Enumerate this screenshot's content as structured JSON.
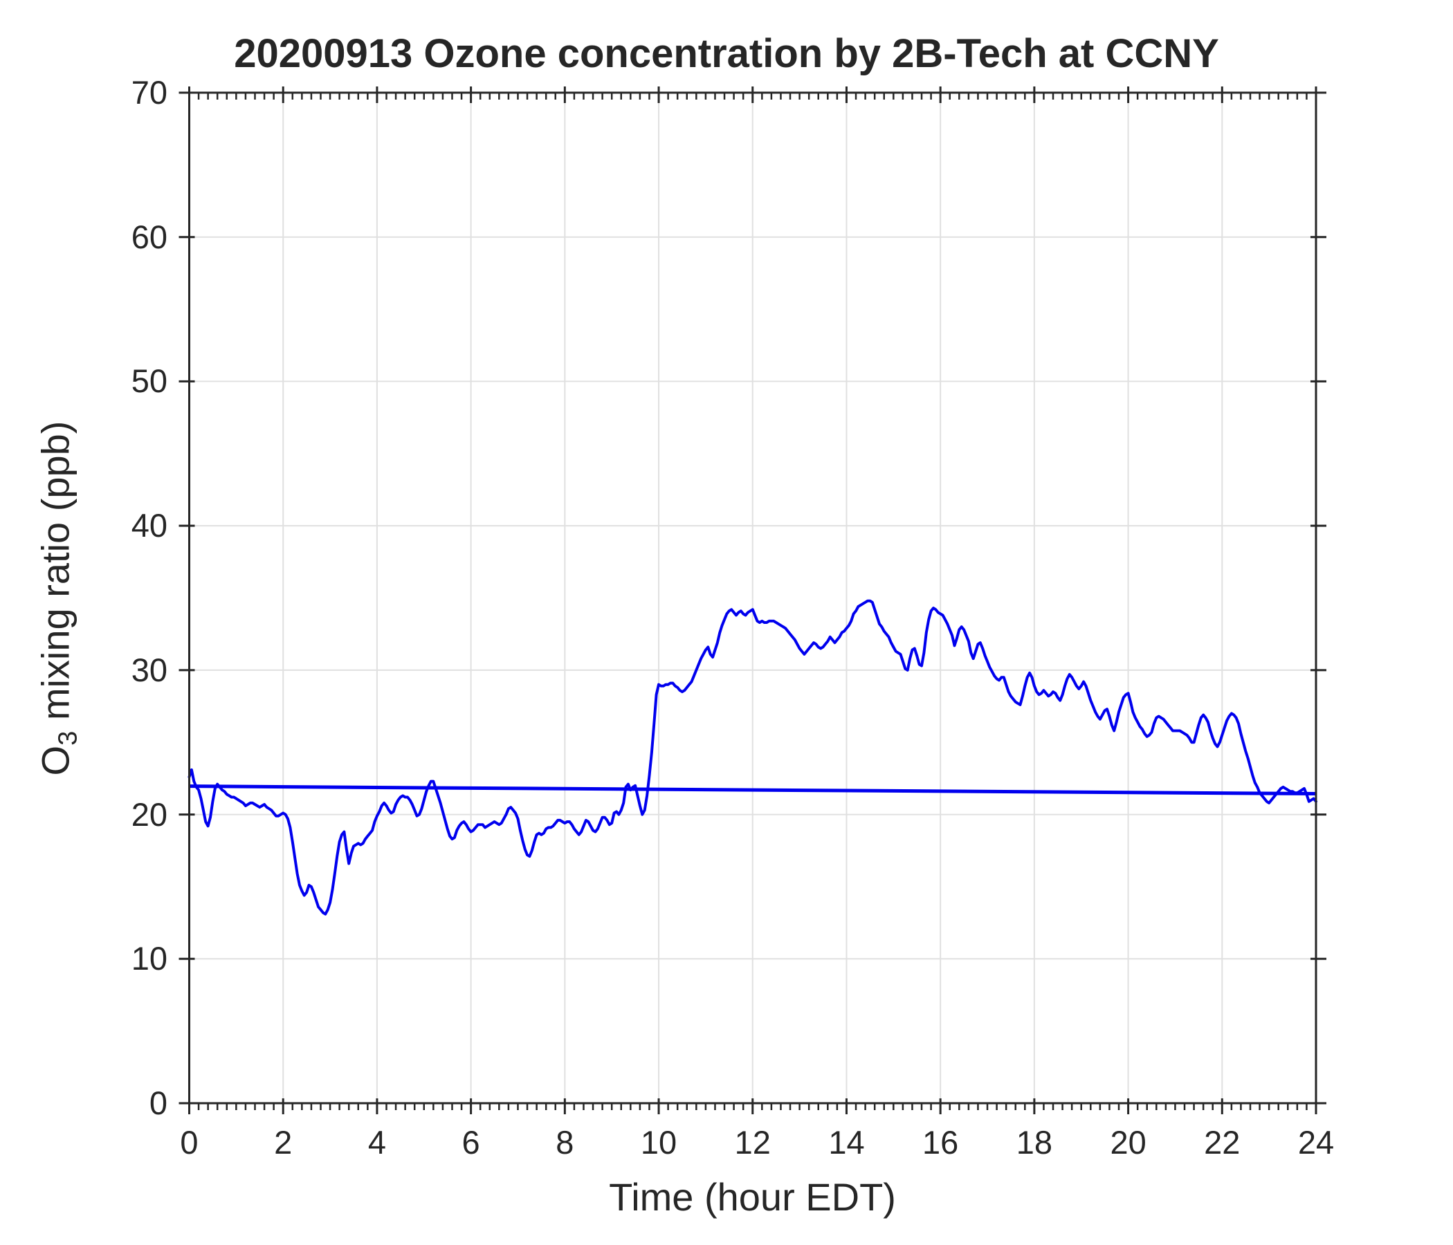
{
  "figure": {
    "title": "20200913 Ozone concentration by 2B-Tech at CCNY",
    "xlabel": "Time (hour EDT)",
    "ylabel_base": "O",
    "ylabel_sub": "3",
    "ylabel_rest": " mixing ratio (ppb)"
  },
  "chart_data": {
    "type": "line",
    "title": "20200913 Ozone concentration by 2B-Tech at CCNY",
    "xlabel": "Time (hour EDT)",
    "ylabel": "O3 mixing ratio (ppb)",
    "xlim": [
      0,
      24
    ],
    "ylim": [
      0,
      70
    ],
    "xticks": [
      0,
      2,
      4,
      6,
      8,
      10,
      12,
      14,
      16,
      18,
      20,
      22,
      24
    ],
    "yticks": [
      0,
      10,
      20,
      30,
      40,
      50,
      60,
      70
    ],
    "x_minor_tick_step": 0.2,
    "grid": true,
    "legend": "none",
    "colors": {
      "line": "#0000ee",
      "reference": "#0000ee",
      "grid": "#e0e0e0",
      "axis": "#262626",
      "text": "#262626",
      "background": "#ffffff"
    },
    "series": [
      {
        "name": "ozone-1min-trace",
        "t_start": 0,
        "t_step": 0.05,
        "values": [
          22.6,
          23.1,
          22.3,
          21.9,
          21.7,
          21.1,
          20.3,
          19.5,
          19.2,
          19.8,
          20.9,
          21.8,
          22.1,
          21.9,
          21.7,
          21.6,
          21.4,
          21.3,
          21.2,
          21.2,
          21.1,
          21.0,
          20.9,
          20.8,
          20.6,
          20.7,
          20.8,
          20.8,
          20.7,
          20.6,
          20.5,
          20.6,
          20.7,
          20.5,
          20.4,
          20.3,
          20.1,
          19.9,
          19.9,
          20.0,
          20.1,
          20.0,
          19.7,
          19.1,
          18.1,
          17.0,
          15.9,
          15.1,
          14.7,
          14.4,
          14.6,
          15.1,
          15.0,
          14.6,
          14.1,
          13.6,
          13.4,
          13.2,
          13.1,
          13.4,
          13.9,
          14.8,
          15.9,
          17.1,
          18.1,
          18.6,
          18.8,
          17.6,
          16.6,
          17.3,
          17.8,
          17.9,
          18.0,
          17.9,
          18.0,
          18.3,
          18.5,
          18.7,
          18.9,
          19.5,
          19.9,
          20.2,
          20.6,
          20.8,
          20.6,
          20.3,
          20.1,
          20.2,
          20.7,
          21.0,
          21.2,
          21.3,
          21.2,
          21.2,
          21.0,
          20.7,
          20.3,
          19.9,
          20.0,
          20.4,
          21.0,
          21.6,
          22.0,
          22.3,
          22.3,
          21.8,
          21.3,
          20.8,
          20.2,
          19.6,
          19.0,
          18.5,
          18.3,
          18.4,
          18.9,
          19.2,
          19.4,
          19.5,
          19.3,
          19.0,
          18.8,
          18.9,
          19.1,
          19.3,
          19.3,
          19.3,
          19.1,
          19.2,
          19.3,
          19.4,
          19.5,
          19.4,
          19.3,
          19.4,
          19.7,
          20.0,
          20.4,
          20.5,
          20.3,
          20.1,
          19.7,
          18.9,
          18.2,
          17.6,
          17.2,
          17.1,
          17.5,
          18.1,
          18.6,
          18.7,
          18.6,
          18.7,
          19.0,
          19.1,
          19.1,
          19.2,
          19.4,
          19.6,
          19.6,
          19.5,
          19.4,
          19.5,
          19.5,
          19.3,
          19.0,
          18.8,
          18.6,
          18.8,
          19.2,
          19.6,
          19.5,
          19.2,
          18.9,
          18.8,
          19.0,
          19.4,
          19.8,
          19.8,
          19.6,
          19.3,
          19.4,
          20.1,
          20.2,
          20.0,
          20.3,
          20.8,
          21.9,
          22.1,
          21.7,
          21.9,
          22.0,
          21.3,
          20.6,
          20.0,
          20.3,
          21.3,
          22.7,
          24.3,
          26.3,
          28.3,
          29.0,
          28.9,
          28.9,
          29.0,
          29.0,
          29.1,
          29.1,
          28.9,
          28.8,
          28.6,
          28.5,
          28.6,
          28.8,
          29.0,
          29.2,
          29.6,
          30.0,
          30.4,
          30.8,
          31.1,
          31.4,
          31.6,
          31.1,
          30.9,
          31.4,
          31.9,
          32.6,
          33.1,
          33.5,
          33.9,
          34.1,
          34.2,
          34.0,
          33.8,
          34.0,
          34.1,
          33.9,
          33.8,
          34.0,
          34.1,
          34.2,
          33.8,
          33.4,
          33.3,
          33.4,
          33.3,
          33.3,
          33.4,
          33.4,
          33.4,
          33.3,
          33.2,
          33.1,
          33.0,
          32.9,
          32.7,
          32.5,
          32.3,
          32.1,
          31.8,
          31.5,
          31.3,
          31.1,
          31.3,
          31.5,
          31.7,
          31.9,
          31.8,
          31.6,
          31.5,
          31.6,
          31.8,
          32.0,
          32.3,
          32.1,
          31.9,
          32.1,
          32.3,
          32.6,
          32.7,
          32.9,
          33.1,
          33.4,
          33.9,
          34.1,
          34.4,
          34.5,
          34.6,
          34.7,
          34.8,
          34.8,
          34.7,
          34.2,
          33.7,
          33.2,
          33.0,
          32.7,
          32.5,
          32.3,
          31.9,
          31.6,
          31.3,
          31.2,
          31.1,
          30.6,
          30.1,
          30.0,
          30.8,
          31.4,
          31.5,
          31.0,
          30.4,
          30.3,
          31.2,
          32.6,
          33.5,
          34.1,
          34.3,
          34.2,
          34.0,
          33.9,
          33.8,
          33.5,
          33.2,
          32.8,
          32.4,
          31.7,
          32.2,
          32.8,
          33.0,
          32.8,
          32.4,
          32.0,
          31.2,
          30.8,
          31.3,
          31.8,
          31.9,
          31.5,
          31.0,
          30.6,
          30.2,
          29.9,
          29.6,
          29.4,
          29.3,
          29.5,
          29.5,
          29.0,
          28.5,
          28.2,
          28.0,
          27.8,
          27.7,
          27.6,
          28.2,
          28.9,
          29.5,
          29.8,
          29.5,
          28.9,
          28.5,
          28.3,
          28.4,
          28.6,
          28.4,
          28.2,
          28.3,
          28.5,
          28.4,
          28.1,
          27.9,
          28.3,
          28.9,
          29.4,
          29.7,
          29.5,
          29.2,
          28.9,
          28.7,
          28.9,
          29.2,
          28.9,
          28.4,
          27.9,
          27.5,
          27.1,
          26.8,
          26.6,
          26.9,
          27.2,
          27.3,
          26.8,
          26.2,
          25.8,
          26.4,
          27.1,
          27.6,
          28.1,
          28.3,
          28.4,
          27.8,
          27.1,
          26.7,
          26.4,
          26.1,
          25.9,
          25.6,
          25.4,
          25.5,
          25.7,
          26.3,
          26.7,
          26.8,
          26.7,
          26.6,
          26.4,
          26.2,
          26.0,
          25.8,
          25.8,
          25.8,
          25.8,
          25.7,
          25.6,
          25.5,
          25.3,
          25.0,
          25.0,
          25.6,
          26.2,
          26.7,
          26.9,
          26.7,
          26.4,
          25.8,
          25.3,
          24.9,
          24.7,
          25.0,
          25.5,
          26.0,
          26.5,
          26.8,
          27.0,
          26.9,
          26.7,
          26.3,
          25.6,
          25.0,
          24.4,
          23.9,
          23.3,
          22.7,
          22.2,
          21.9,
          21.5,
          21.3,
          21.1,
          20.9,
          20.8,
          21.0,
          21.2,
          21.4,
          21.6,
          21.8,
          21.9,
          21.8,
          21.7,
          21.6,
          21.6,
          21.5,
          21.5,
          21.6,
          21.7,
          21.8,
          21.4,
          20.9,
          21.0,
          21.1,
          20.9
        ]
      },
      {
        "name": "reference-line",
        "points": [
          [
            0,
            21.96
          ],
          [
            24,
            21.44
          ]
        ]
      }
    ]
  }
}
